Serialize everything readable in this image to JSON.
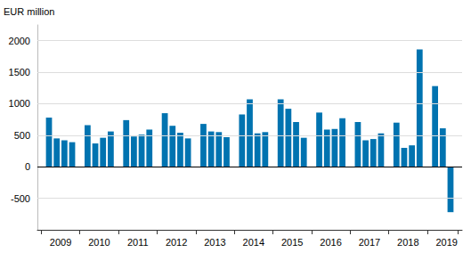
{
  "chart_data": {
    "type": "bar",
    "y_label": "EUR million",
    "categories": [
      null,
      null,
      "2009",
      null,
      null,
      null,
      null,
      "2010",
      null,
      null,
      null,
      null,
      "2011",
      null,
      null,
      null,
      null,
      "2012",
      null,
      null,
      null,
      null,
      "2013",
      null,
      null,
      null,
      null,
      "2014",
      null,
      null,
      null,
      null,
      "2015",
      null,
      null,
      null,
      null,
      "2016",
      null,
      null,
      null,
      null,
      "2017",
      null,
      null,
      null,
      null,
      "2018",
      null,
      null,
      null,
      null,
      "2019",
      null,
      null
    ],
    "values": [
      null,
      780,
      450,
      420,
      390,
      null,
      660,
      370,
      460,
      560,
      null,
      740,
      480,
      510,
      590,
      null,
      850,
      650,
      540,
      450,
      null,
      680,
      560,
      550,
      470,
      null,
      830,
      1070,
      530,
      550,
      null,
      1070,
      920,
      710,
      460,
      null,
      860,
      590,
      600,
      770,
      null,
      710,
      420,
      440,
      530,
      null,
      700,
      300,
      340,
      1860,
      null,
      1280,
      610,
      -720,
      null
    ],
    "color": "#0073b0",
    "ylim": [
      -1000,
      2250
    ],
    "yticks": [
      -500,
      0,
      500,
      1000,
      1500,
      2000
    ],
    "grid": true
  }
}
